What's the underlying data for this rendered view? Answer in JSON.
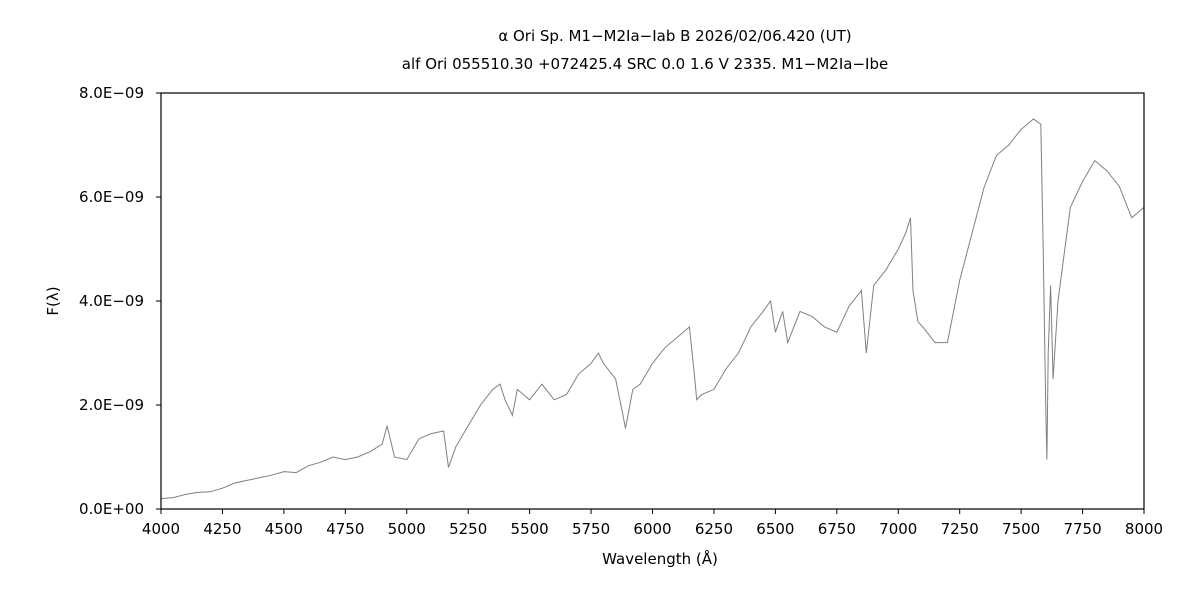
{
  "chart_data": {
    "type": "line",
    "title": "α  Ori     Sp. M1−M2Ia−Iab B     2026/02/06.420 (UT)",
    "subtitle": "alf Ori     055510.30 +072425.4     SRC     0.0  1.6  V     2335.     M1−M2Ia−Ibe",
    "xlabel": "Wavelength (Å)",
    "ylabel": "F(λ)",
    "xlim": [
      4000,
      8000
    ],
    "ylim": [
      0,
      8e-09
    ],
    "x_ticks": [
      "4000",
      "4250",
      "4500",
      "4750",
      "5000",
      "5250",
      "5500",
      "5750",
      "6000",
      "6250",
      "6500",
      "6750",
      "7000",
      "7250",
      "7500",
      "7750",
      "8000"
    ],
    "y_ticks": [
      "0.0E+00",
      "2.0E−09",
      "4.0E−09",
      "6.0E−09",
      "8.0E−09"
    ],
    "grid": false,
    "line_color": "#808080",
    "series": [
      {
        "x": [
          4000,
          4050,
          4100,
          4150,
          4200,
          4250,
          4300,
          4350,
          4400,
          4450,
          4500,
          4550,
          4600,
          4650,
          4700,
          4750,
          4800,
          4850,
          4900,
          4920,
          4950,
          5000,
          5050,
          5100,
          5150,
          5170,
          5200,
          5250,
          5300,
          5350,
          5380,
          5400,
          5430,
          5450,
          5500,
          5550,
          5600,
          5650,
          5700,
          5750,
          5780,
          5800,
          5850,
          5880,
          5890,
          5920,
          5950,
          6000,
          6050,
          6100,
          6150,
          6170,
          6180,
          6200,
          6250,
          6300,
          6350,
          6400,
          6450,
          6480,
          6500,
          6530,
          6550,
          6600,
          6650,
          6700,
          6750,
          6800,
          6850,
          6870,
          6900,
          6950,
          7000,
          7030,
          7050,
          7060,
          7080,
          7100,
          7150,
          7200,
          7250,
          7300,
          7350,
          7400,
          7450,
          7500,
          7550,
          7580,
          7590,
          7600,
          7605,
          7610,
          7620,
          7630,
          7650,
          7700,
          7750,
          7800,
          7850,
          7900,
          7950,
          8000
        ],
        "y": [
          2e-10,
          2.2e-10,
          2.8e-10,
          3.2e-10,
          3.3e-10,
          4e-10,
          5e-10,
          5.5e-10,
          6e-10,
          6.5e-10,
          7.2e-10,
          7e-10,
          8.3e-10,
          9e-10,
          1e-09,
          9.5e-10,
          1e-09,
          1.1e-09,
          1.25e-09,
          1.6e-09,
          1e-09,
          9.5e-10,
          1.35e-09,
          1.45e-09,
          1.5e-09,
          8e-10,
          1.2e-09,
          1.6e-09,
          2e-09,
          2.3e-09,
          2.4e-09,
          2.1e-09,
          1.8e-09,
          2.3e-09,
          2.1e-09,
          2.4e-09,
          2.1e-09,
          2.2e-09,
          2.6e-09,
          2.8e-09,
          3e-09,
          2.8e-09,
          2.5e-09,
          1.8e-09,
          1.55e-09,
          2.3e-09,
          2.4e-09,
          2.8e-09,
          3.1e-09,
          3.3e-09,
          3.5e-09,
          2.6e-09,
          2.1e-09,
          2.2e-09,
          2.3e-09,
          2.7e-09,
          3e-09,
          3.5e-09,
          3.8e-09,
          4e-09,
          3.4e-09,
          3.8e-09,
          3.2e-09,
          3.8e-09,
          3.7e-09,
          3.5e-09,
          3.4e-09,
          3.9e-09,
          4.2e-09,
          3e-09,
          4.3e-09,
          4.6e-09,
          5e-09,
          5.3e-09,
          5.6e-09,
          4.2e-09,
          3.6e-09,
          3.5e-09,
          3.2e-09,
          3.2e-09,
          4.4e-09,
          5.3e-09,
          6.2e-09,
          6.8e-09,
          7e-09,
          7.3e-09,
          7.5e-09,
          7.4e-09,
          5e-09,
          2e-09,
          9.5e-10,
          3e-09,
          4.3e-09,
          2.5e-09,
          4e-09,
          5.8e-09,
          6.3e-09,
          6.7e-09,
          6.5e-09,
          6.2e-09,
          5.6e-09,
          5.8e-09
        ]
      }
    ]
  }
}
